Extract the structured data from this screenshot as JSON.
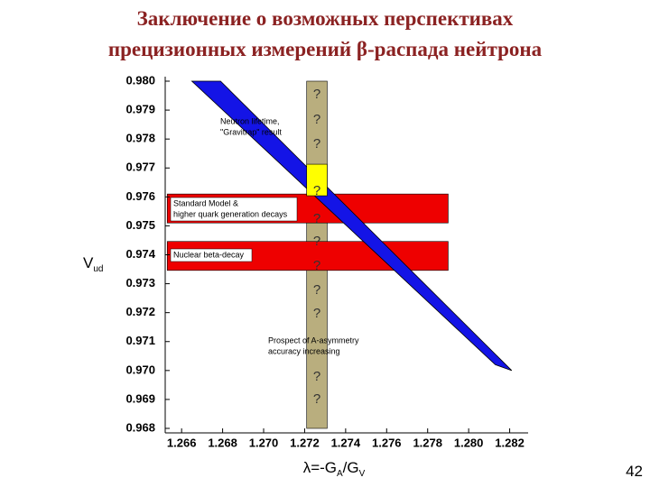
{
  "header": {
    "title": [
      "Заключение о возможных перспективах",
      "прецизионных измерений β-распада нейтрона"
    ]
  },
  "chart_data": {
    "type": "region",
    "xlim": [
      1.2652,
      1.2829
    ],
    "ylim": [
      0.968,
      0.98
    ],
    "xticks": [
      1.266,
      1.268,
      {
        "value": 1.27,
        "label": "1.270"
      },
      1.272,
      1.274,
      1.276,
      1.278,
      {
        "value": 1.28,
        "label": "1.280"
      },
      1.282
    ],
    "yticks": [
      0.968,
      0.969,
      {
        "value": 0.97,
        "label": "0.970"
      },
      0.971,
      0.972,
      0.973,
      0.974,
      0.975,
      0.976,
      0.977,
      0.978,
      0.979,
      {
        "value": 0.98,
        "label": "0.980"
      }
    ],
    "y_label": [
      {
        "text": "V"
      },
      {
        "text": "ud",
        "sub": true
      }
    ],
    "x_label": [
      {
        "text": "λ=-G"
      },
      {
        "text": "A",
        "sub": true
      },
      {
        "text": "/G"
      },
      {
        "text": "V",
        "sub": true
      }
    ],
    "regions": [
      {
        "color": "#b9ae7e",
        "xrange": [
          1.2721,
          1.2731
        ],
        "label": [
          "Prospect of A-asymmetry",
          "accuracy increasing"
        ]
      },
      {
        "color": "#ee0000",
        "xrange": [
          1.2653,
          1.279
        ],
        "yrange": [
          0.9751,
          0.9761
        ],
        "label": [
          "Standard Model &",
          "higher quark generation decays"
        ]
      },
      {
        "color": "#ee0000",
        "xrange": [
          1.2653,
          1.279
        ],
        "yrange": [
          0.97346,
          0.97446
        ],
        "label": [
          "Nuclear beta-decay"
        ]
      },
      {
        "color": "#1414e6",
        "x": [
          1.2665,
          1.2679,
          1.2821,
          1.2813
        ],
        "y": [
          0.98,
          0.98,
          0.97,
          0.9702
        ],
        "label": [
          "Neutron lifetime,",
          "\"Gravitrap\" result"
        ]
      },
      {
        "color": "#ffff00",
        "xrange": [
          1.2721,
          1.2731
        ],
        "yrange": [
          0.97604,
          0.97713
        ]
      }
    ],
    "question_marks": [
      "?",
      "?",
      "?",
      "?",
      "?",
      "?",
      "?",
      "?",
      "?",
      "?",
      "?"
    ]
  },
  "page_number": "42"
}
